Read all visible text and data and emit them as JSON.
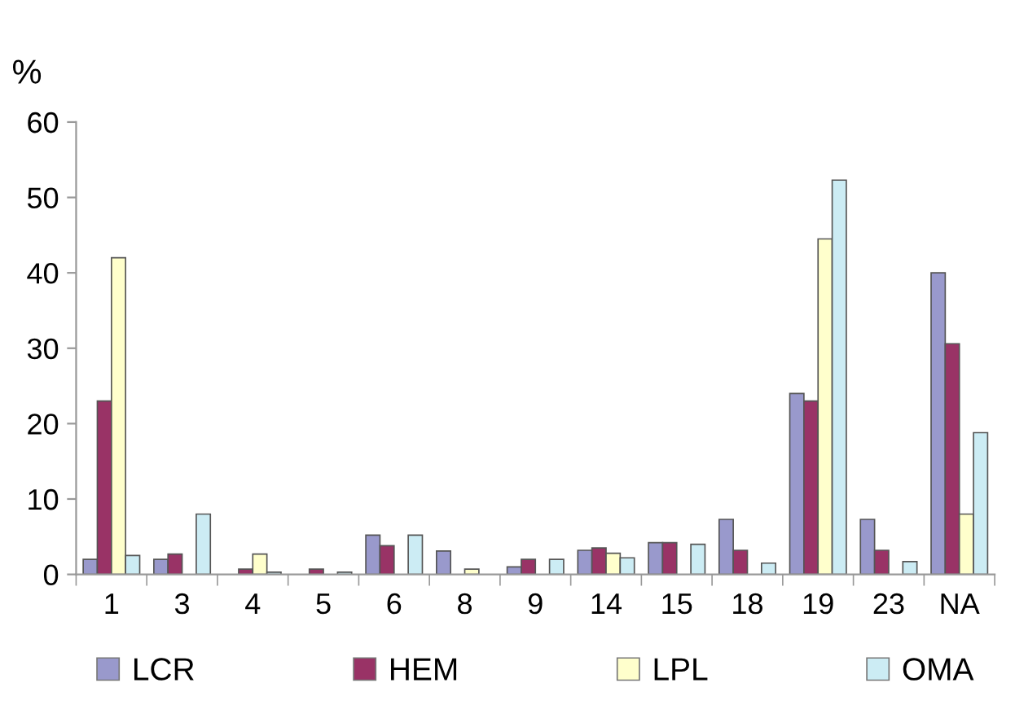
{
  "chart_data": {
    "type": "bar",
    "ylabel": "%",
    "categories": [
      "1",
      "3",
      "4",
      "5",
      "6",
      "8",
      "9",
      "14",
      "15",
      "18",
      "19",
      "23",
      "NA"
    ],
    "series": [
      {
        "name": "LCR",
        "color": "#9999cc",
        "values": [
          2,
          2,
          null,
          null,
          5.2,
          3.1,
          1,
          3.2,
          4.2,
          7.3,
          24,
          7.3,
          40
        ]
      },
      {
        "name": "HEM",
        "color": "#993366",
        "values": [
          23,
          2.7,
          0.7,
          0.7,
          3.8,
          null,
          2,
          3.5,
          4.2,
          3.2,
          23,
          3.2,
          30.6
        ]
      },
      {
        "name": "LPL",
        "color": "#ffffcc",
        "values": [
          42,
          null,
          2.7,
          null,
          null,
          0.7,
          null,
          2.8,
          null,
          null,
          44.5,
          null,
          8
        ]
      },
      {
        "name": "OMA",
        "color": "#ccecf4",
        "values": [
          2.5,
          8,
          0.3,
          0.3,
          5.2,
          null,
          2,
          2.2,
          4,
          1.5,
          52.3,
          1.7,
          18.8
        ]
      }
    ],
    "ylim": [
      0,
      60
    ],
    "yticks": [
      0,
      10,
      20,
      30,
      40,
      50,
      60
    ],
    "grid": false,
    "legend": "bottom"
  }
}
